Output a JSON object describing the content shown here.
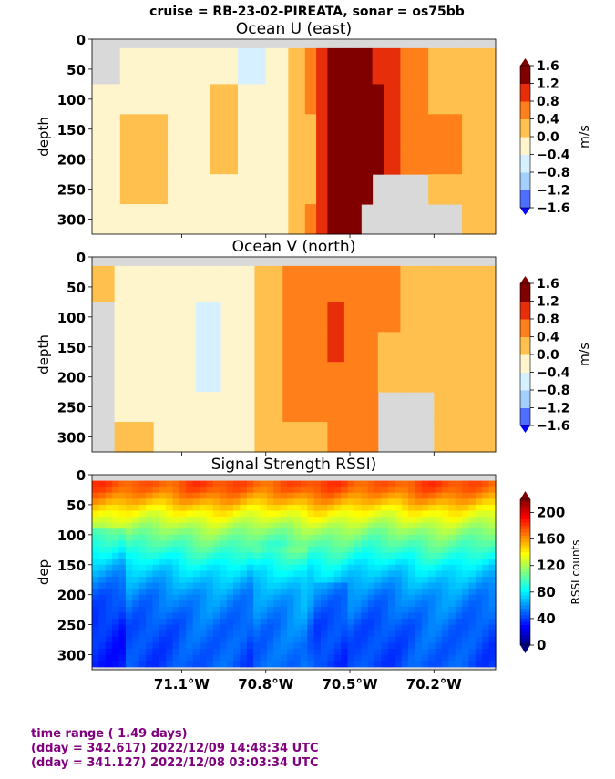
{
  "suptitle": "cruise = RB-23-02-PIREATA,  sonar = os75bb",
  "footer": {
    "line1": "time range ( 1.49 days)",
    "line2": "(dday = 342.617) 2022/12/09 14:48:34 UTC",
    "line3": "(dday = 341.127) 2022/12/08 03:03:34 UTC"
  },
  "chart_data": [
    {
      "type": "heatmap",
      "title": "Ocean U (east)",
      "ylabel": "depth",
      "ylim": [
        325,
        0
      ],
      "yticks": [
        0,
        50,
        100,
        150,
        200,
        250,
        300
      ],
      "xlim": [
        -71.42,
        -69.98
      ],
      "xticks": [
        -71.1,
        -70.8,
        -70.5,
        -70.2
      ],
      "xticklabels": [
        "",
        "",
        "",
        ""
      ],
      "colorbar": {
        "label": "m/s",
        "ticks": [
          "1.6",
          "1.2",
          "0.8",
          "0.4",
          "0.0",
          "−0.4",
          "−0.8",
          "−1.2",
          "−1.6"
        ],
        "levels": [
          -1.6,
          -1.2,
          -0.8,
          -0.4,
          0.0,
          0.4,
          0.8,
          1.2,
          1.6
        ],
        "colors": [
          "#0000ff",
          "#4d6eff",
          "#a3cfff",
          "#d6f0ff",
          "#fff5cc",
          "#ffc04d",
          "#ff7f1a",
          "#e62e0a",
          "#800000"
        ]
      },
      "columns": [
        {
          "x0": -71.42,
          "x1": -71.32,
          "v": [
            null,
            null,
            -0.1,
            -0.1,
            -0.2,
            -0.2,
            -0.2
          ]
        },
        {
          "x0": -71.32,
          "x1": -71.15,
          "v": [
            null,
            -0.2,
            -0.2,
            0.1,
            0.1,
            0.1,
            -0.1
          ]
        },
        {
          "x0": -71.15,
          "x1": -71.0,
          "v": [
            null,
            -0.2,
            -0.2,
            -0.2,
            -0.2,
            -0.2,
            -0.2
          ]
        },
        {
          "x0": -71.0,
          "x1": -70.9,
          "v": [
            null,
            -0.1,
            0.1,
            0.1,
            0.1,
            -0.1,
            -0.2
          ]
        },
        {
          "x0": -70.9,
          "x1": -70.8,
          "v": [
            null,
            -0.5,
            -0.2,
            -0.2,
            -0.2,
            -0.2,
            -0.2
          ]
        },
        {
          "x0": -70.8,
          "x1": -70.72,
          "v": [
            null,
            -0.1,
            -0.1,
            -0.1,
            -0.1,
            -0.1,
            -0.1
          ]
        },
        {
          "x0": -70.72,
          "x1": -70.66,
          "v": [
            null,
            0.2,
            0.2,
            0.2,
            0.2,
            0.2,
            0.2
          ]
        },
        {
          "x0": -70.66,
          "x1": -70.62,
          "v": [
            null,
            0.5,
            0.5,
            0.3,
            0.3,
            0.3,
            0.5
          ]
        },
        {
          "x0": -70.62,
          "x1": -70.58,
          "v": [
            null,
            1.0,
            0.9,
            0.9,
            0.9,
            0.9,
            1.0
          ]
        },
        {
          "x0": -70.58,
          "x1": -70.52,
          "v": [
            null,
            1.7,
            1.7,
            1.7,
            1.7,
            1.3,
            1.3
          ]
        },
        {
          "x0": -70.52,
          "x1": -70.46,
          "v": [
            null,
            1.7,
            1.7,
            1.7,
            1.7,
            1.7,
            1.7
          ]
        },
        {
          "x0": -70.46,
          "x1": -70.42,
          "v": [
            null,
            1.3,
            1.3,
            1.7,
            1.7,
            1.7,
            null
          ]
        },
        {
          "x0": -70.42,
          "x1": -70.38,
          "v": [
            null,
            0.9,
            1.3,
            1.3,
            1.3,
            null,
            null
          ]
        },
        {
          "x0": -70.38,
          "x1": -70.32,
          "v": [
            null,
            0.9,
            0.9,
            0.9,
            0.9,
            null,
            null
          ]
        },
        {
          "x0": -70.32,
          "x1": -70.22,
          "v": [
            null,
            0.5,
            0.5,
            0.5,
            0.5,
            null,
            null
          ]
        },
        {
          "x0": -70.22,
          "x1": -70.1,
          "v": [
            null,
            0.2,
            0.2,
            0.5,
            0.5,
            0.2,
            null
          ]
        },
        {
          "x0": -70.1,
          "x1": -69.98,
          "v": [
            null,
            0.2,
            0.2,
            0.2,
            0.2,
            0.2,
            0.2
          ]
        }
      ]
    },
    {
      "type": "heatmap",
      "title": "Ocean V (north)",
      "ylabel": "depth",
      "ylim": [
        325,
        0
      ],
      "yticks": [
        0,
        50,
        100,
        150,
        200,
        250,
        300
      ],
      "xlim": [
        -71.42,
        -69.98
      ],
      "xticks": [
        -71.1,
        -70.8,
        -70.5,
        -70.2
      ],
      "xticklabels": [
        "",
        "",
        "",
        ""
      ],
      "colorbar": {
        "label": "m/s",
        "ticks": [
          "1.6",
          "1.2",
          "0.8",
          "0.4",
          "0.0",
          "−0.4",
          "−0.8",
          "−1.2",
          "−1.6"
        ],
        "levels": [
          -1.6,
          -1.2,
          -0.8,
          -0.4,
          0.0,
          0.4,
          0.8,
          1.2,
          1.6
        ],
        "colors": [
          "#0000ff",
          "#4d6eff",
          "#a3cfff",
          "#d6f0ff",
          "#fff5cc",
          "#ffc04d",
          "#ff7f1a",
          "#e62e0a",
          "#800000"
        ]
      },
      "columns": [
        {
          "x0": -71.42,
          "x1": -71.34,
          "v": [
            null,
            0.1,
            null,
            null,
            null,
            null,
            null
          ]
        },
        {
          "x0": -71.34,
          "x1": -71.2,
          "v": [
            null,
            -0.1,
            -0.1,
            -0.1,
            -0.1,
            -0.1,
            0.1
          ]
        },
        {
          "x0": -71.2,
          "x1": -71.05,
          "v": [
            null,
            -0.1,
            -0.1,
            -0.1,
            -0.1,
            -0.1,
            -0.1
          ]
        },
        {
          "x0": -71.05,
          "x1": -70.96,
          "v": [
            null,
            -0.1,
            -0.5,
            -0.5,
            -0.5,
            -0.1,
            -0.1
          ]
        },
        {
          "x0": -70.96,
          "x1": -70.84,
          "v": [
            null,
            -0.1,
            -0.1,
            -0.1,
            -0.1,
            -0.1,
            -0.1
          ]
        },
        {
          "x0": -70.84,
          "x1": -70.74,
          "v": [
            null,
            0.1,
            0.1,
            0.1,
            0.1,
            0.1,
            0.1
          ]
        },
        {
          "x0": -70.74,
          "x1": -70.58,
          "v": [
            null,
            0.6,
            0.6,
            0.6,
            0.6,
            0.6,
            0.1
          ]
        },
        {
          "x0": -70.58,
          "x1": -70.52,
          "v": [
            null,
            0.6,
            0.9,
            0.9,
            0.6,
            0.6,
            0.6
          ]
        },
        {
          "x0": -70.52,
          "x1": -70.4,
          "v": [
            null,
            0.6,
            0.6,
            0.6,
            0.6,
            0.6,
            0.6
          ]
        },
        {
          "x0": -70.4,
          "x1": -70.32,
          "v": [
            null,
            0.6,
            0.6,
            0.1,
            0.1,
            null,
            null
          ]
        },
        {
          "x0": -70.32,
          "x1": -70.2,
          "v": [
            null,
            0.1,
            0.1,
            0.1,
            0.1,
            null,
            null
          ]
        },
        {
          "x0": -70.2,
          "x1": -69.98,
          "v": [
            null,
            0.1,
            0.1,
            0.1,
            0.1,
            0.1,
            0.1
          ]
        }
      ]
    },
    {
      "type": "heatmap",
      "title": "Signal Strength RSSI)",
      "ylabel": "dep",
      "ylim": [
        325,
        0
      ],
      "yticks": [
        0,
        50,
        100,
        150,
        200,
        250,
        300
      ],
      "xlim": [
        -71.42,
        -69.98
      ],
      "xticks": [
        -71.1,
        -70.8,
        -70.5,
        -70.2
      ],
      "xticklabels": [
        "71.1°W",
        "70.8°W",
        "70.5°W",
        "70.2°W"
      ],
      "colorbar": {
        "label": "RSSI counts",
        "ticks": [
          "200",
          "160",
          "120",
          "80",
          "40",
          "0"
        ],
        "range": [
          0,
          220
        ]
      },
      "depth_profile": [
        {
          "depth": 20,
          "rssi": 175
        },
        {
          "depth": 40,
          "rssi": 160
        },
        {
          "depth": 60,
          "rssi": 140
        },
        {
          "depth": 80,
          "rssi": 125
        },
        {
          "depth": 100,
          "rssi": 110
        },
        {
          "depth": 125,
          "rssi": 95
        },
        {
          "depth": 150,
          "rssi": 80
        },
        {
          "depth": 175,
          "rssi": 68
        },
        {
          "depth": 200,
          "rssi": 58
        },
        {
          "depth": 250,
          "rssi": 48
        },
        {
          "depth": 300,
          "rssi": 45
        }
      ]
    }
  ]
}
